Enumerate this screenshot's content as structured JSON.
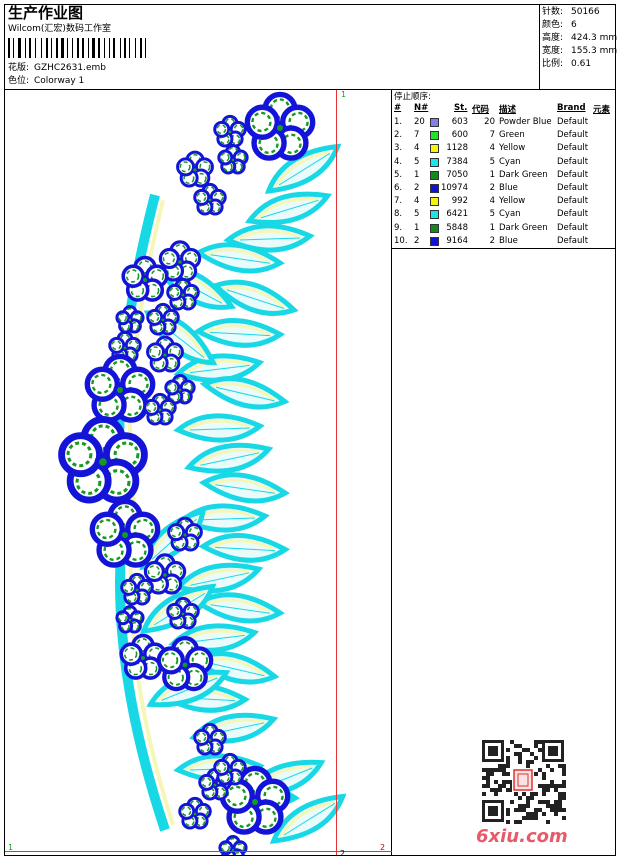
{
  "header": {
    "title": "生产作业图",
    "studio": "Wilcom(汇宏)数码工作室",
    "design_label": "花版:",
    "design_value": "GZHC2631.emb",
    "colorway_label": "色位:",
    "colorway_value": "Colorway 1"
  },
  "stats": [
    {
      "label": "针数:",
      "value": "50166"
    },
    {
      "label": "颜色:",
      "value": "6"
    },
    {
      "label": "高度:",
      "value": "424.3 mm"
    },
    {
      "label": "宽度:",
      "value": "155.3 mm"
    },
    {
      "label": "比例:",
      "value": "0.61"
    }
  ],
  "stop_sequence": {
    "title": "停止顺序:",
    "headers": {
      "idx": "#",
      "no": "N#",
      "st": "St.",
      "code": "代码",
      "desc": "描述",
      "brand": "Brand",
      "element": "元素"
    },
    "rows": [
      {
        "idx": "1.",
        "no": "20",
        "color": "#7e7ff0",
        "st": "603",
        "code": "20",
        "desc": "Powder Blue",
        "brand": "Default"
      },
      {
        "idx": "2.",
        "no": "7",
        "color": "#22e22a",
        "st": "600",
        "code": "7",
        "desc": "Green",
        "brand": "Default"
      },
      {
        "idx": "3.",
        "no": "4",
        "color": "#f5f50c",
        "st": "1128",
        "code": "4",
        "desc": "Yellow",
        "brand": "Default"
      },
      {
        "idx": "4.",
        "no": "5",
        "color": "#19e6e6",
        "st": "7384",
        "code": "5",
        "desc": "Cyan",
        "brand": "Default"
      },
      {
        "idx": "5.",
        "no": "1",
        "color": "#138a1d",
        "st": "7050",
        "code": "1",
        "desc": "Dark Green",
        "brand": "Default"
      },
      {
        "idx": "6.",
        "no": "2",
        "color": "#1212d6",
        "st": "10974",
        "code": "2",
        "desc": "Blue",
        "brand": "Default"
      },
      {
        "idx": "7.",
        "no": "4",
        "color": "#f5f50c",
        "st": "992",
        "code": "4",
        "desc": "Yellow",
        "brand": "Default"
      },
      {
        "idx": "8.",
        "no": "5",
        "color": "#19e6e6",
        "st": "6421",
        "code": "5",
        "desc": "Cyan",
        "brand": "Default"
      },
      {
        "idx": "9.",
        "no": "1",
        "color": "#138a1d",
        "st": "5848",
        "code": "1",
        "desc": "Dark Green",
        "brand": "Default"
      },
      {
        "idx": "10.",
        "no": "2",
        "color": "#1212d6",
        "st": "9164",
        "code": "2",
        "desc": "Blue",
        "brand": "Default"
      }
    ]
  },
  "canvas_marks": {
    "top_right": "1",
    "bottom_left": "1",
    "bottom_mid": "2",
    "bottom_right": "2"
  },
  "watermark": "6xiu.com"
}
